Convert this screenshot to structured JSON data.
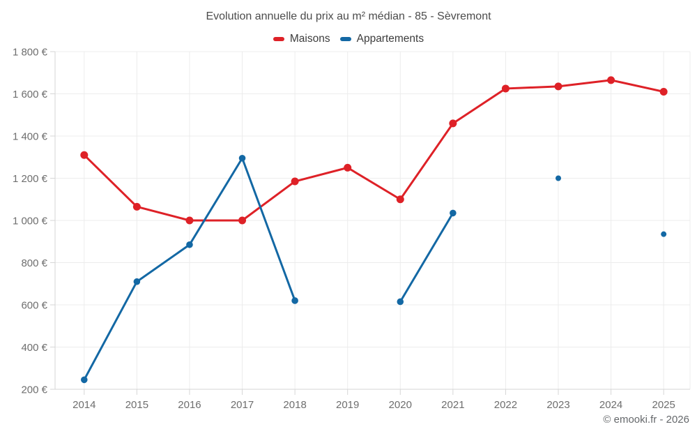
{
  "header": {
    "title": "Evolution annuelle du prix au m² médian - 85 - Sèvremont",
    "footer": "© emooki.fr - 2026"
  },
  "legend": {
    "items": [
      {
        "label": "Maisons",
        "color": "#de2127"
      },
      {
        "label": "Appartements",
        "color": "#1368a4"
      }
    ]
  },
  "chart_data": {
    "type": "line",
    "title": "Evolution annuelle du prix au m² médian - 85 - Sèvremont",
    "categories": [
      "2014",
      "2015",
      "2016",
      "2017",
      "2018",
      "2019",
      "2020",
      "2021",
      "2022",
      "2023",
      "2024",
      "2025"
    ],
    "series": [
      {
        "name": "Maisons",
        "color": "#de2127",
        "values": [
          1310,
          1065,
          1000,
          1000,
          1185,
          1250,
          1100,
          1460,
          1625,
          1635,
          1665,
          1610
        ]
      },
      {
        "name": "Appartements",
        "color": "#1368a4",
        "values": [
          245,
          710,
          885,
          1295,
          620,
          null,
          615,
          1035,
          null,
          1200,
          null,
          935
        ]
      }
    ],
    "xlabel": "",
    "ylabel": "",
    "ylim": [
      200,
      1800
    ],
    "y_tick_step": 200,
    "y_tick_labels": [
      "200 €",
      "400 €",
      "600 €",
      "800 €",
      "1 000 €",
      "1 200 €",
      "1 400 €",
      "1 600 €",
      "1 800 €"
    ],
    "grid": true,
    "legend_position": "top",
    "currency_suffix": " €"
  }
}
